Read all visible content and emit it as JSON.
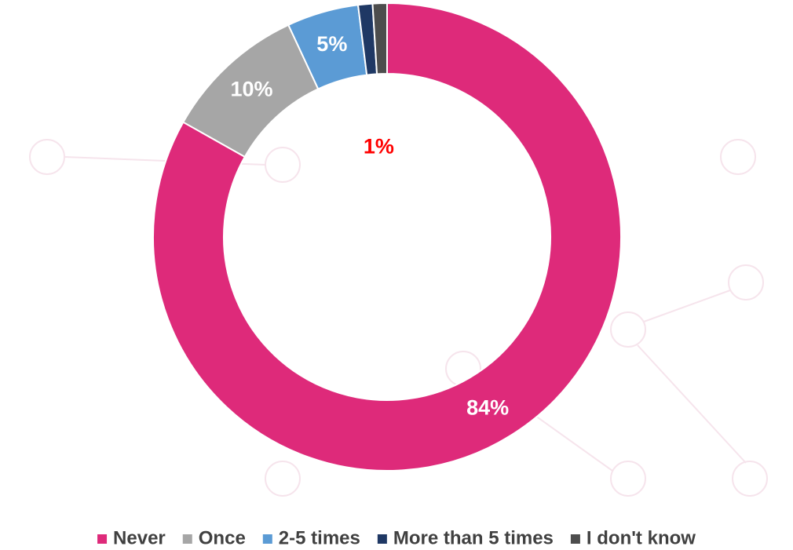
{
  "chart_data": {
    "type": "donut",
    "categories": [
      "Never",
      "Once",
      "2-5 times",
      "More than 5 times",
      "I don't know"
    ],
    "values": [
      84,
      10,
      5,
      1,
      1
    ],
    "value_labels": [
      "84%",
      "10%",
      "5%",
      "1%",
      null
    ],
    "colors": [
      "#de2a7a",
      "#a6a6a6",
      "#5b9bd5",
      "#1f3864",
      "#4d4d4d"
    ],
    "value_label_colors": [
      "#ffffff",
      "#ffffff",
      "#ffffff",
      "#ff0000",
      null
    ],
    "legend": "bottom"
  }
}
